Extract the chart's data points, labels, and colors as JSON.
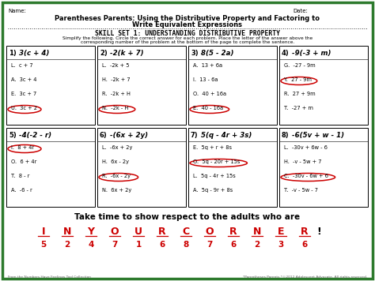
{
  "bg_color": "#ffffff",
  "border_color": "#2d7a2d",
  "name_label": "Name:",
  "date_label": "Date:",
  "title_line1": "Parentheses Parents: Using the Distributive Property and Factoring to",
  "title_line2": "Write Equivalent Expressions",
  "skill_title": "SKILL SET 1: UNDERSTANDING DISTRIBUTIVE PROPERTY",
  "instructions1": "Simplify the following. Circle the correct answer for each problem. Place the letter of the answer above the",
  "instructions2": "corresponding number of the problem at the bottom of the page to complete the sentence.",
  "problems": [
    {
      "num": "1)",
      "expr": "3(c + 4)",
      "choices": [
        "L.  c + 7",
        "A.  3c + 4",
        "E.  3c + 7",
        "U.  3c + 2"
      ],
      "circled": 3
    },
    {
      "num": "2)",
      "expr": "-2(k + 7)",
      "choices": [
        "L.  -2k + 5",
        "H.  -2k + 7",
        "R.  -2k + H",
        "N.  -2k - H"
      ],
      "circled": 3
    },
    {
      "num": "3)",
      "expr": "8(5 - 2a)",
      "choices": [
        "A.  13 + 6a",
        "I.  13 - 6a",
        "O.  40 + 16a",
        "E.  40 - 16a"
      ],
      "circled": 3
    },
    {
      "num": "4)",
      "expr": "-9(-3 + m)",
      "choices": [
        "G.  -27 - 9m",
        "Y.  27 - 9m",
        "R.  27 + 9m",
        "T.  -27 + m"
      ],
      "circled": 1
    },
    {
      "num": "5)",
      "expr": "-4(-2 - r)",
      "choices": [
        "I.  8 + 4r",
        "O.  6 + 4r",
        "T.  8 - r",
        "A.  -6 - r"
      ],
      "circled": 0
    },
    {
      "num": "6)",
      "expr": "-(6x + 2y)",
      "choices": [
        "L.  -6x + 2y",
        "H.  6x - 2y",
        "R.  -6x - 2y",
        "N.  6x + 2y"
      ],
      "circled": 2
    },
    {
      "num": "7)",
      "expr": "5(q - 4r + 3s)",
      "choices": [
        "E.  5q + r + 8s",
        "O.  5q - 20r + 15s",
        "L.  5q - 4r + 15s",
        "A.  5q - 9r + 8s"
      ],
      "circled": 1
    },
    {
      "num": "8)",
      "expr": "-6(5v + w - 1)",
      "choices": [
        "L.  -30v + 6w - 6",
        "H.  -v - 5w + 7",
        "C.  -30v - 6w + 6",
        "T.  -v - 5w - 7"
      ],
      "circled": 2
    }
  ],
  "bottom_text": "Take time to show respect to the adults who are",
  "letters": [
    "I",
    "N",
    "Y",
    "O",
    "U",
    "R",
    "C",
    "O",
    "R",
    "N",
    "E",
    "R"
  ],
  "numbers": [
    "5",
    "2",
    "4",
    "7",
    "1",
    "6",
    "8",
    "7",
    "6",
    "2",
    "3",
    "6"
  ],
  "exclamation": "!",
  "footer_left": "From the Numbers Have Feelings Tool Collection",
  "footer_right": "*Parentheses Parents *©2012 Adolescent Advocate. All rights reserved.",
  "circle_color": "#cc0000",
  "letter_color": "#cc0000"
}
